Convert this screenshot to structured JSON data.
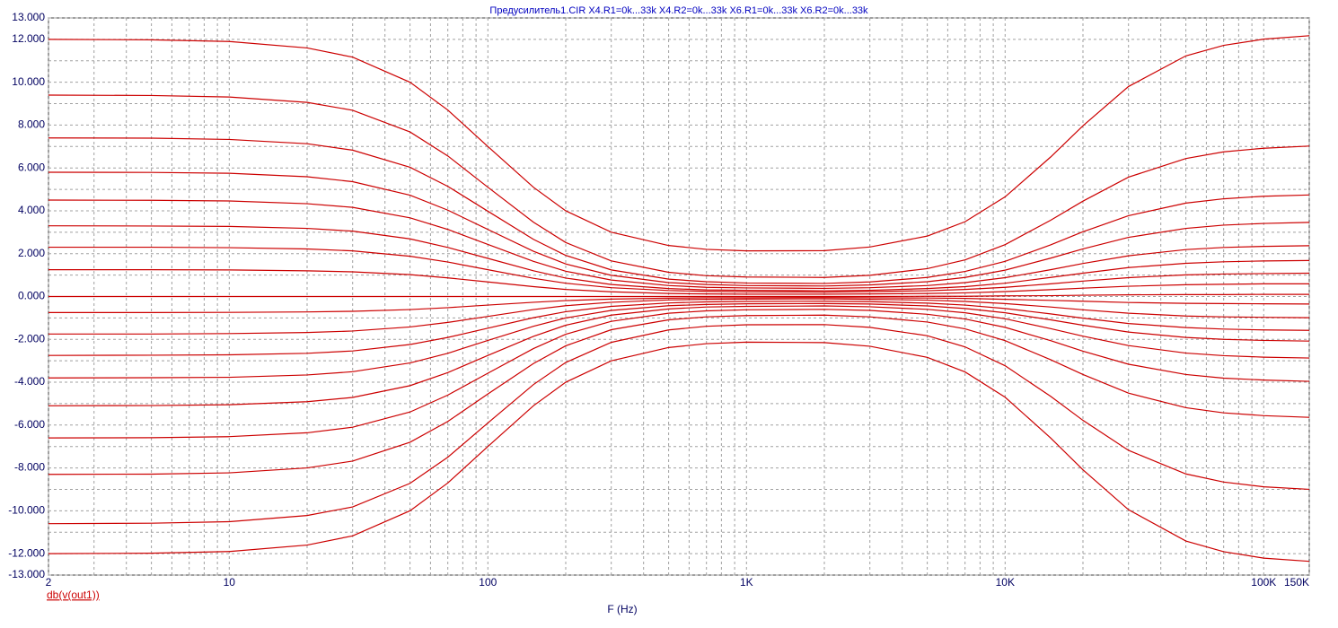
{
  "chart_data": {
    "type": "line",
    "title": "Предусилитель1.CIR X4.R1=0k...33k X4.R2=0k...33k X6.R1=0k...33k X6.R2=0k...33k",
    "xlabel": "F (Hz)",
    "ylabel": "db(v(out1))",
    "log_x": true,
    "grid": true,
    "color": "#cc0000",
    "xlim": [
      2,
      150000
    ],
    "xticks": [
      2,
      10,
      100,
      {
        "value": 1000,
        "label": "1K"
      },
      {
        "value": 10000,
        "label": "10K"
      },
      {
        "value": 100000,
        "label": "100K"
      },
      {
        "value": 150000,
        "label": "150K"
      }
    ],
    "x_minor_grid": [
      3,
      4,
      5,
      6,
      7,
      8,
      9,
      20,
      30,
      40,
      50,
      60,
      70,
      80,
      90,
      200,
      300,
      400,
      500,
      600,
      700,
      800,
      900,
      2000,
      3000,
      4000,
      5000,
      6000,
      7000,
      8000,
      9000,
      20000,
      30000,
      40000,
      50000,
      60000,
      70000,
      80000,
      90000
    ],
    "ylim": [
      -13,
      13
    ],
    "yticks": [
      {
        "value": 13,
        "label": "13.000"
      },
      {
        "value": 12,
        "label": "12.000"
      },
      {
        "value": 10,
        "label": "10.000"
      },
      {
        "value": 8,
        "label": "8.000"
      },
      {
        "value": 6,
        "label": "6.000"
      },
      {
        "value": 4,
        "label": "4.000"
      },
      {
        "value": 2,
        "label": "2.000"
      },
      {
        "value": 0,
        "label": "0.000"
      },
      {
        "value": -2,
        "label": "-2.000"
      },
      {
        "value": -4,
        "label": "-4.000"
      },
      {
        "value": -6,
        "label": "-6.000"
      },
      {
        "value": -8,
        "label": "-8.000"
      },
      {
        "value": -10,
        "label": "-10.000"
      },
      {
        "value": -12,
        "label": "-12.000"
      },
      {
        "value": -13,
        "label": "-13.000"
      }
    ],
    "y_minor_grid": [
      11,
      9,
      7,
      5,
      3,
      1,
      -1,
      -3,
      -5,
      -7,
      -9,
      -11
    ],
    "x": [
      2,
      5,
      10,
      20,
      30,
      50,
      70,
      100,
      150,
      200,
      300,
      500,
      700,
      1000,
      2000,
      3000,
      5000,
      7000,
      10000,
      15000,
      20000,
      30000,
      50000,
      70000,
      100000,
      150000
    ],
    "series": [
      {
        "values": [
          12,
          11.98,
          11.9,
          11.6,
          11.17,
          10,
          8.7,
          7,
          5.1,
          4,
          3,
          2.38,
          2.2,
          2.13,
          2.14,
          2.31,
          2.82,
          3.49,
          4.65,
          6.51,
          7.97,
          9.8,
          11.23,
          11.72,
          12.01,
          12.17
        ]
      },
      {
        "values": [
          9.4,
          9.38,
          9.31,
          9.06,
          8.69,
          7.68,
          6.56,
          5.1,
          3.47,
          2.52,
          1.66,
          1.13,
          0.97,
          0.91,
          0.89,
          0.99,
          1.3,
          1.71,
          2.42,
          3.56,
          4.45,
          5.57,
          6.44,
          6.75,
          6.92,
          7.02
        ]
      },
      {
        "values": [
          7.4,
          7.39,
          7.33,
          7.13,
          6.83,
          6.03,
          5.14,
          3.98,
          2.67,
          1.92,
          1.24,
          0.81,
          0.69,
          0.63,
          0.61,
          0.68,
          0.89,
          1.17,
          1.64,
          2.41,
          3.02,
          3.77,
          4.36,
          4.56,
          4.68,
          4.74
        ]
      },
      {
        "values": [
          5.8,
          5.79,
          5.75,
          5.59,
          5.36,
          4.73,
          4.03,
          3.13,
          2.11,
          1.52,
          0.99,
          0.65,
          0.56,
          0.51,
          0.49,
          0.54,
          0.69,
          0.89,
          1.23,
          1.79,
          2.22,
          2.76,
          3.18,
          3.33,
          3.41,
          3.46
        ]
      },
      {
        "values": [
          4.5,
          4.49,
          4.46,
          4.33,
          4.16,
          3.67,
          3.13,
          2.43,
          1.64,
          1.18,
          0.77,
          0.51,
          0.43,
          0.4,
          0.38,
          0.41,
          0.51,
          0.65,
          0.88,
          1.25,
          1.54,
          1.9,
          2.19,
          2.29,
          2.34,
          2.37
        ]
      },
      {
        "values": [
          3.3,
          3.29,
          3.27,
          3.18,
          3.05,
          2.69,
          2.29,
          1.78,
          1.2,
          0.86,
          0.56,
          0.37,
          0.31,
          0.29,
          0.27,
          0.29,
          0.37,
          0.46,
          0.62,
          0.89,
          1.09,
          1.35,
          1.55,
          1.62,
          1.66,
          1.68
        ]
      },
      {
        "values": [
          2.3,
          2.3,
          2.28,
          2.22,
          2.13,
          1.88,
          1.61,
          1.25,
          0.85,
          0.62,
          0.41,
          0.28,
          0.24,
          0.22,
          0.21,
          0.23,
          0.27,
          0.33,
          0.43,
          0.59,
          0.72,
          0.88,
          1.01,
          1.05,
          1.07,
          1.09
        ]
      },
      {
        "values": [
          1.25,
          1.25,
          1.24,
          1.2,
          1.15,
          1.02,
          0.87,
          0.68,
          0.46,
          0.33,
          0.22,
          0.14,
          0.12,
          0.11,
          0.11,
          0.12,
          0.14,
          0.17,
          0.23,
          0.32,
          0.39,
          0.48,
          0.55,
          0.57,
          0.59,
          0.59
        ]
      },
      {
        "values": [
          0,
          0,
          0,
          0,
          0,
          0,
          0,
          0,
          0,
          0,
          0,
          0,
          0,
          0,
          0,
          0,
          0.01,
          0.01,
          0.03,
          0.04,
          0.06,
          0.08,
          0.09,
          0.09,
          0.1,
          0.1
        ]
      },
      {
        "values": [
          -0.75,
          -0.75,
          -0.74,
          -0.72,
          -0.69,
          -0.61,
          -0.52,
          -0.4,
          -0.27,
          -0.19,
          -0.12,
          -0.08,
          -0.06,
          -0.06,
          -0.05,
          -0.06,
          -0.07,
          -0.09,
          -0.13,
          -0.18,
          -0.22,
          -0.28,
          -0.32,
          -0.33,
          -0.34,
          -0.35
        ]
      },
      {
        "values": [
          -1.75,
          -1.75,
          -1.73,
          -1.68,
          -1.61,
          -1.42,
          -1.21,
          -0.93,
          -0.61,
          -0.43,
          -0.27,
          -0.16,
          -0.13,
          -0.12,
          -0.11,
          -0.13,
          -0.17,
          -0.23,
          -0.33,
          -0.49,
          -0.62,
          -0.78,
          -0.91,
          -0.95,
          -0.97,
          -0.99
        ]
      },
      {
        "values": [
          -2.75,
          -2.74,
          -2.72,
          -2.65,
          -2.54,
          -2.24,
          -1.91,
          -1.48,
          -0.99,
          -0.71,
          -0.46,
          -0.3,
          -0.25,
          -0.23,
          -0.22,
          -0.24,
          -0.31,
          -0.4,
          -0.56,
          -0.81,
          -1.01,
          -1.26,
          -1.45,
          -1.52,
          -1.56,
          -1.58
        ]
      },
      {
        "values": [
          -3.8,
          -3.79,
          -3.77,
          -3.66,
          -3.51,
          -3.1,
          -2.65,
          -2.05,
          -1.39,
          -1,
          -0.65,
          -0.43,
          -0.37,
          -0.34,
          -0.33,
          -0.35,
          -0.44,
          -0.56,
          -0.76,
          -1.09,
          -1.34,
          -1.66,
          -1.91,
          -2,
          -2.05,
          -2.08
        ]
      },
      {
        "values": [
          -5.1,
          -5.09,
          -5.05,
          -4.91,
          -4.71,
          -4.16,
          -3.55,
          -2.75,
          -1.86,
          -1.34,
          -0.87,
          -0.58,
          -0.49,
          -0.46,
          -0.44,
          -0.48,
          -0.6,
          -0.76,
          -1.04,
          -1.5,
          -1.85,
          -2.29,
          -2.64,
          -2.76,
          -2.83,
          -2.87
        ]
      },
      {
        "values": [
          -6.6,
          -6.59,
          -6.54,
          -6.36,
          -6.1,
          -5.39,
          -4.6,
          -3.58,
          -2.43,
          -1.76,
          -1.16,
          -0.78,
          -0.67,
          -0.62,
          -0.6,
          -0.65,
          -0.83,
          -1.05,
          -1.44,
          -2.06,
          -2.55,
          -3.16,
          -3.64,
          -3.81,
          -3.9,
          -3.96
        ]
      },
      {
        "values": [
          -8.3,
          -8.29,
          -8.23,
          -8,
          -7.68,
          -6.8,
          -5.83,
          -4.55,
          -3.13,
          -2.3,
          -1.55,
          -1.09,
          -0.95,
          -0.89,
          -0.87,
          -0.95,
          -1.19,
          -1.51,
          -2.06,
          -2.95,
          -3.64,
          -4.51,
          -5.19,
          -5.43,
          -5.56,
          -5.64
        ]
      },
      {
        "values": [
          -10.6,
          -10.58,
          -10.51,
          -10.22,
          -9.82,
          -8.72,
          -7.5,
          -5.9,
          -4.11,
          -3.08,
          -2.14,
          -1.56,
          -1.39,
          -1.32,
          -1.31,
          -1.44,
          -1.83,
          -2.35,
          -3.23,
          -4.66,
          -5.78,
          -7.18,
          -8.28,
          -8.66,
          -8.88,
          -9
        ]
      },
      {
        "values": [
          -12,
          -11.98,
          -11.9,
          -11.6,
          -11.17,
          -10,
          -8.7,
          -7,
          -5.1,
          -4,
          -3,
          -2.38,
          -2.2,
          -2.13,
          -2.15,
          -2.32,
          -2.84,
          -3.52,
          -4.7,
          -6.6,
          -8.09,
          -9.95,
          -11.41,
          -11.91,
          -12.21,
          -12.36
        ]
      }
    ]
  }
}
